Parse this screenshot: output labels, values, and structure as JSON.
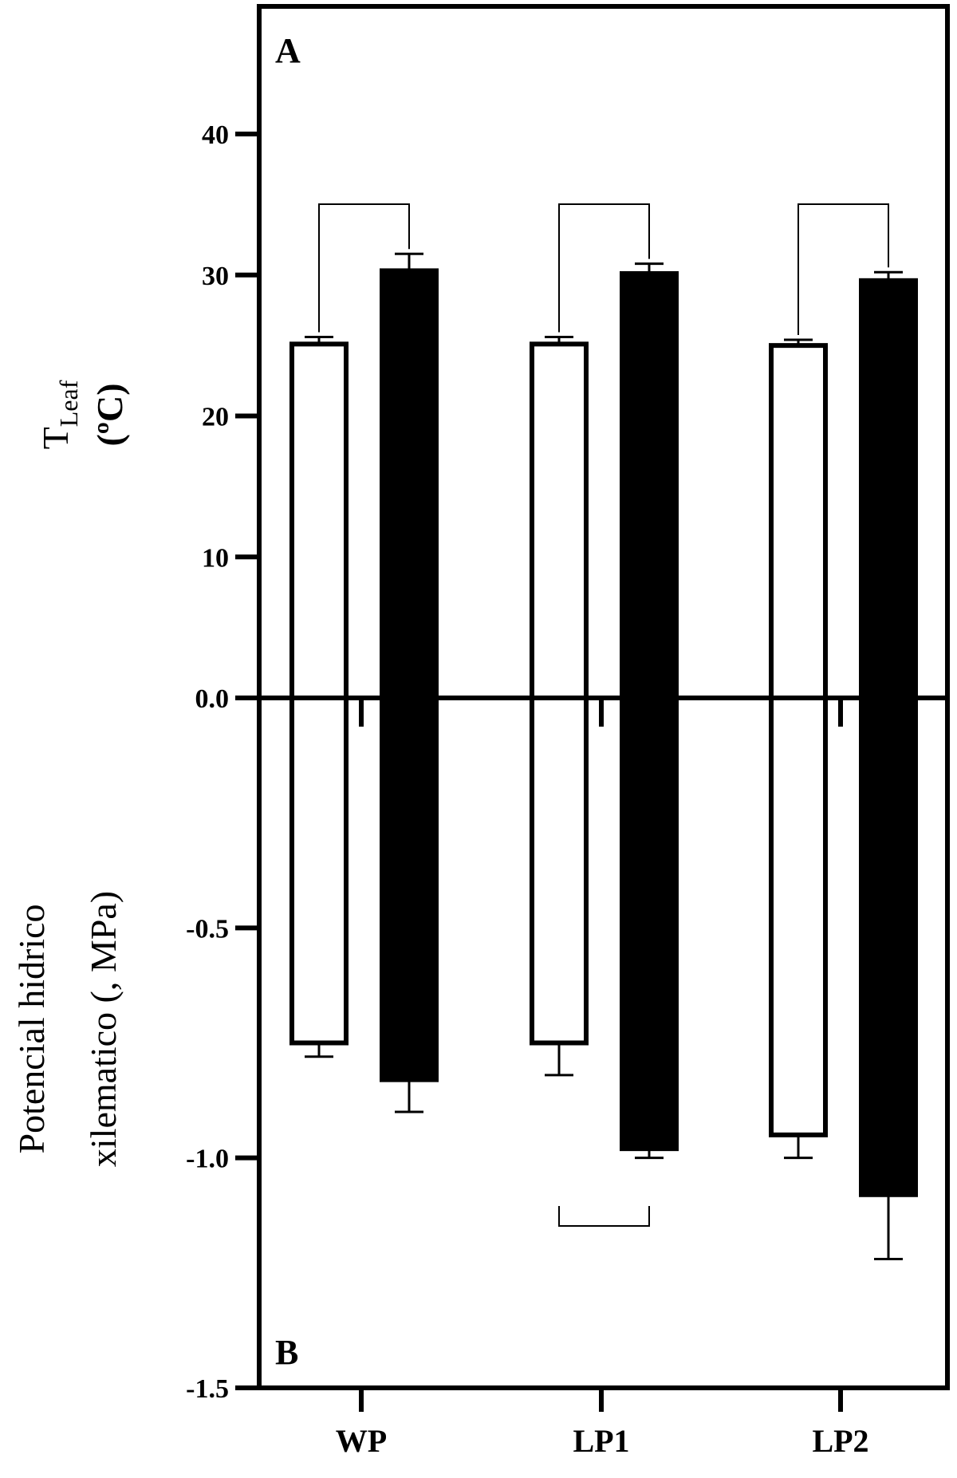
{
  "chart_data": {
    "type": "bar",
    "categories": [
      "WP",
      "LP1",
      "LP2"
    ],
    "panels": [
      {
        "panel_label": "A",
        "ylabel_main": "T",
        "ylabel_sub": "Leaf",
        "ylabel_unit": "(ºC)",
        "ylim": [
          0,
          40
        ],
        "yticks": [
          0,
          10,
          20,
          30,
          40
        ],
        "ytick_labels": [
          "0.0",
          "10",
          "20",
          "30",
          "40"
        ],
        "series": [
          {
            "fill": "white",
            "values": [
              25.1,
              25.1,
              25.0
            ],
            "errors": [
              0.5,
              0.5,
              0.4
            ]
          },
          {
            "fill": "black",
            "values": [
              30.3,
              30.1,
              29.6
            ],
            "errors": [
              1.2,
              0.7,
              0.6
            ]
          }
        ],
        "significance_brackets": [
          "WP",
          "LP1",
          "LP2"
        ]
      },
      {
        "panel_label": "B",
        "ylabel_line1": "Potencial hidrico",
        "ylabel_line2": "xilematico (\u0001, MPa)",
        "ylim": [
          -1.5,
          0
        ],
        "yticks": [
          -1.5,
          -1.0,
          -0.5
        ],
        "ytick_labels": [
          "-1.5",
          "-1.0",
          "-0.5"
        ],
        "series": [
          {
            "fill": "white",
            "values": [
              -0.75,
              -0.75,
              -0.95
            ],
            "errors": [
              0.03,
              0.07,
              0.05
            ]
          },
          {
            "fill": "black",
            "values": [
              -0.83,
              -0.98,
              -1.08
            ],
            "errors": [
              0.07,
              0.02,
              0.14
            ]
          }
        ],
        "significance_brackets": [
          "LP1"
        ]
      }
    ],
    "grid": false,
    "colors": {
      "bar_open": "#ffffff",
      "bar_filled": "#000000",
      "axis": "#000000"
    }
  }
}
